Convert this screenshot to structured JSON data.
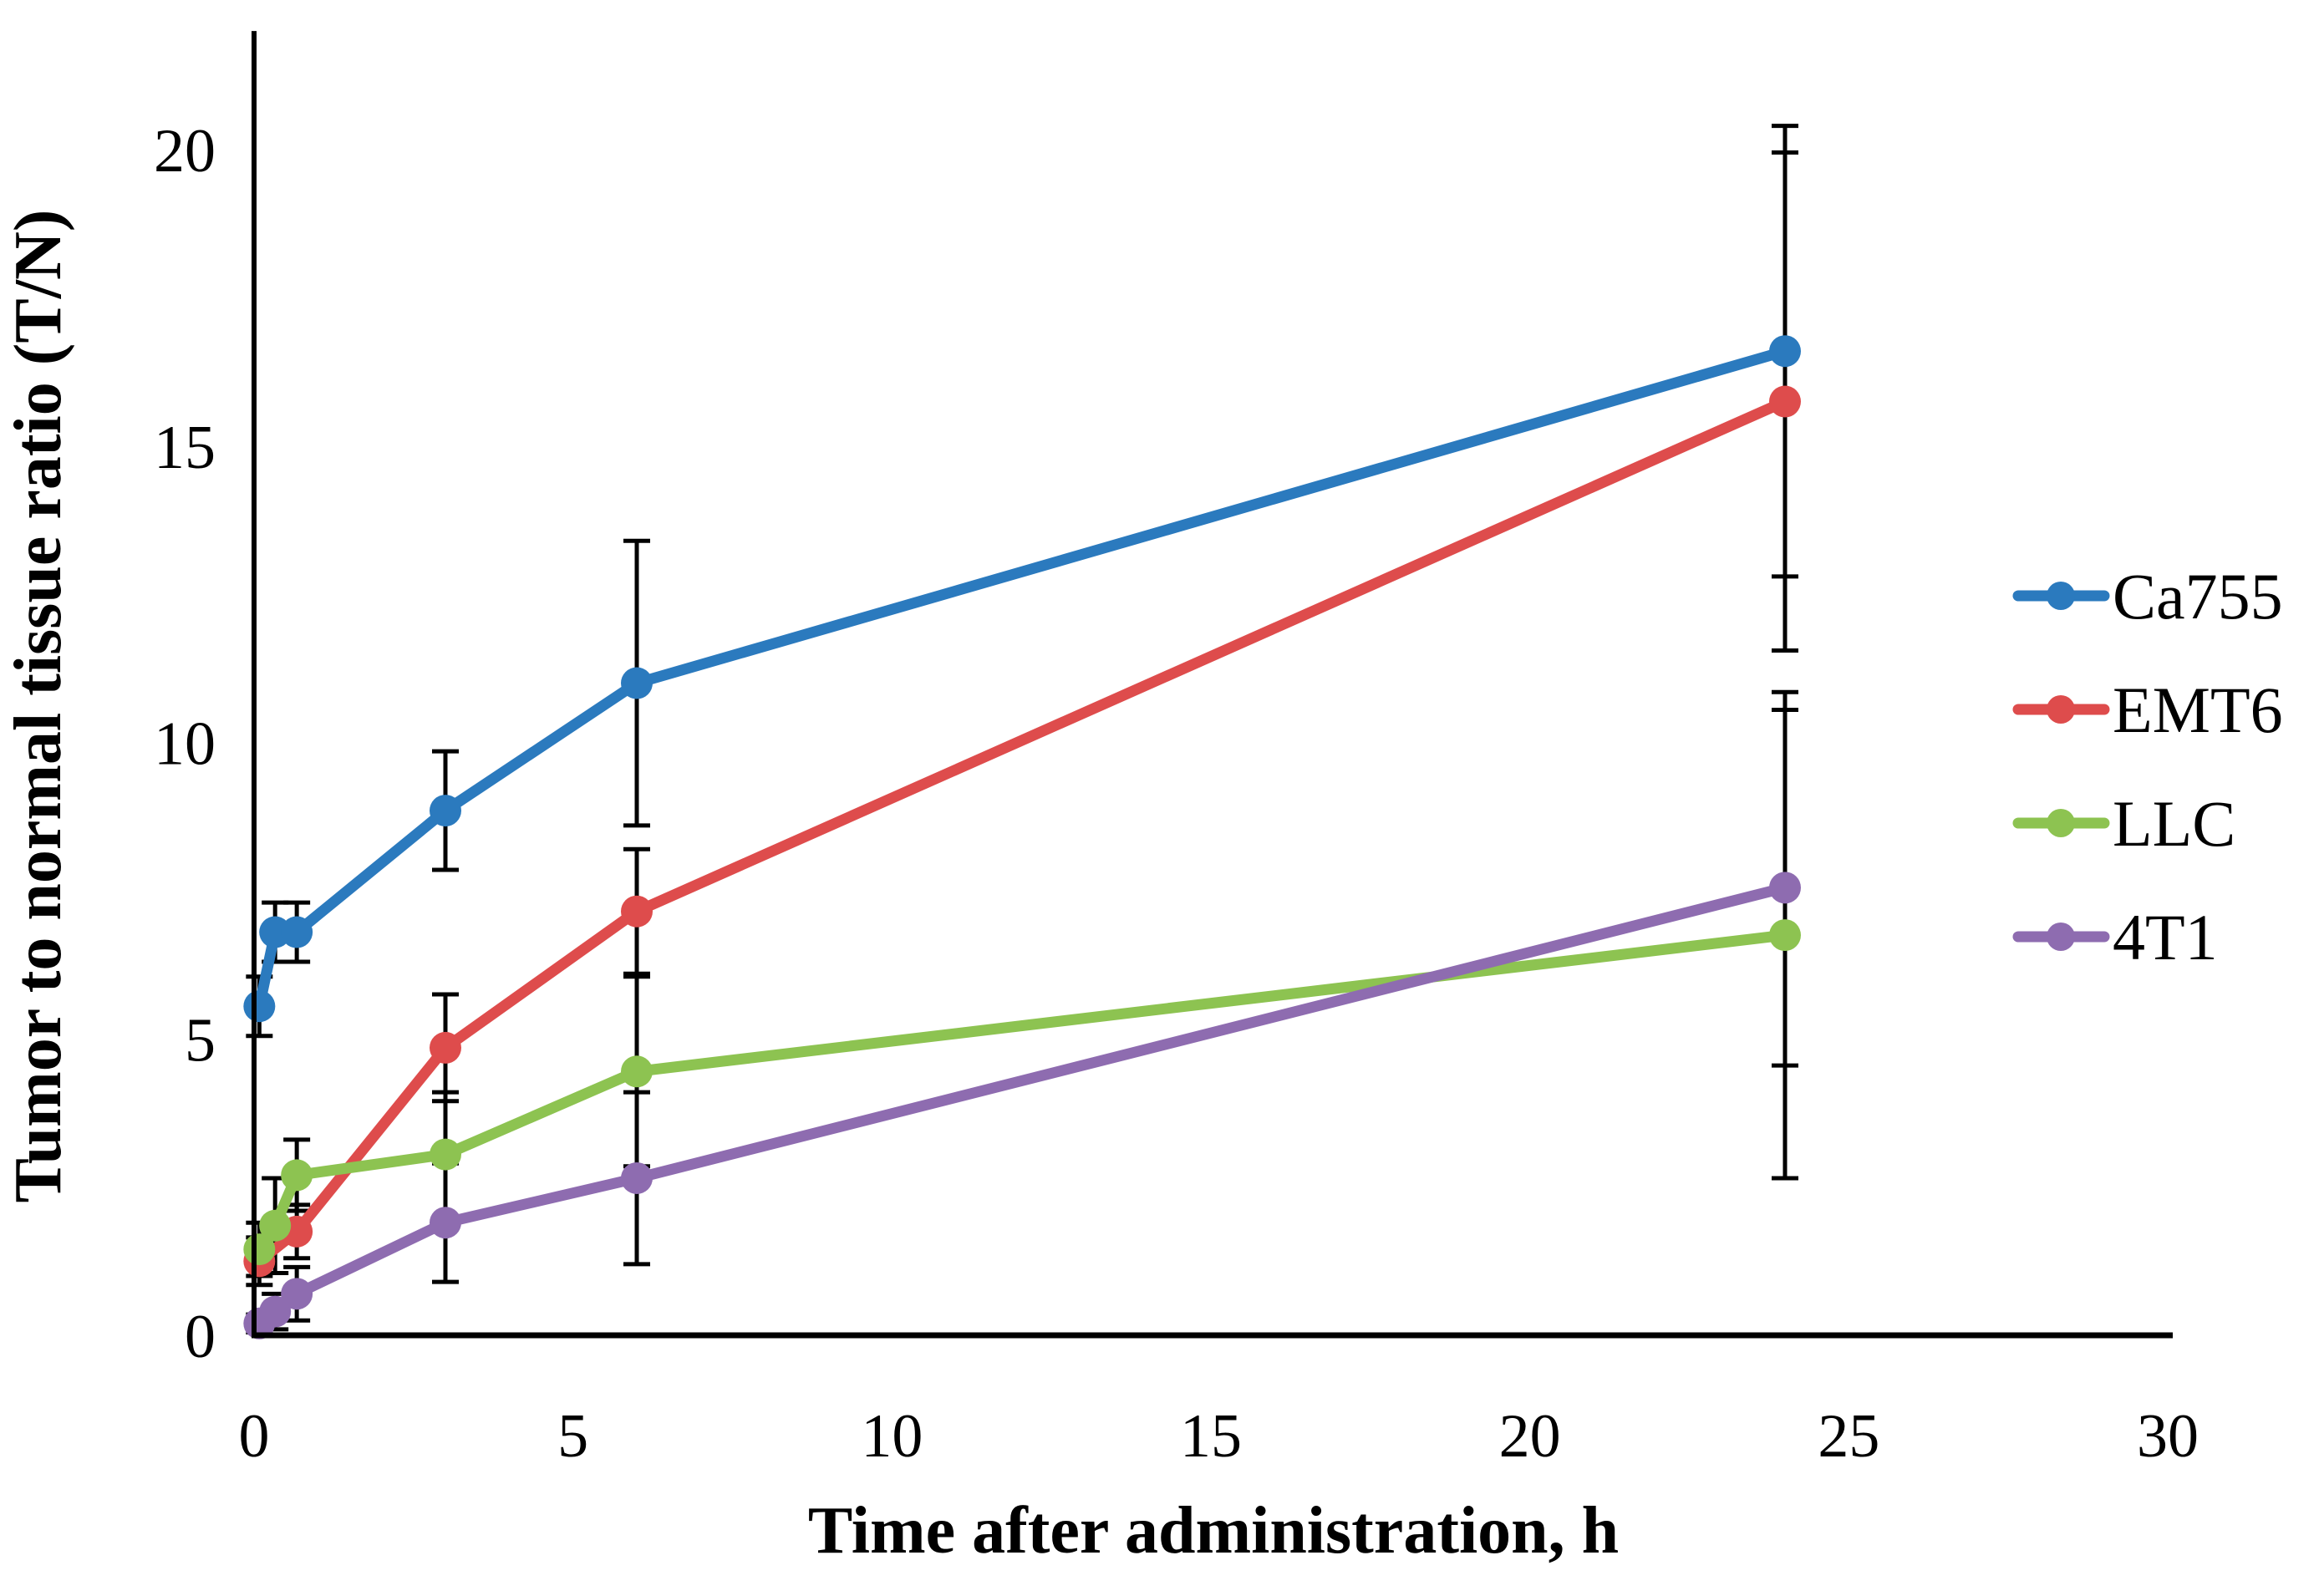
{
  "chart_data": {
    "type": "line",
    "title": "",
    "xlabel": "Time after administration, h",
    "ylabel": "Tumor to normal tissue ratio (T/N)",
    "xlim": [
      0,
      30
    ],
    "ylim": [
      0,
      22
    ],
    "x_ticks": [
      0,
      5,
      10,
      15,
      20,
      25,
      30
    ],
    "y_ticks": [
      0,
      5,
      10,
      15,
      20
    ],
    "grid": false,
    "error_bars": true,
    "legend_position": "right-middle",
    "axis_color": "#000000",
    "error_bar_color": "#000000",
    "series": [
      {
        "name": "Ca755",
        "color": "#2B7ABE",
        "x": [
          0.083,
          0.33,
          0.67,
          3,
          6,
          24
        ],
        "y": [
          5.55,
          6.8,
          6.8,
          8.85,
          11.0,
          16.6
        ],
        "err": [
          0.5,
          0.5,
          0.5,
          1.0,
          2.4,
          3.8
        ]
      },
      {
        "name": "EMT6",
        "color": "#DE4C4C",
        "x": [
          0.083,
          0.67,
          3,
          6,
          24
        ],
        "y": [
          1.25,
          1.75,
          4.85,
          7.15,
          15.75
        ],
        "err": [
          0.4,
          0.45,
          0.9,
          1.05,
          4.2
        ]
      },
      {
        "name": "LLC",
        "color": "#8DC351",
        "x": [
          0.083,
          0.33,
          0.67,
          3,
          6,
          24
        ],
        "y": [
          1.45,
          1.85,
          2.7,
          3.05,
          4.45,
          6.75
        ],
        "err": [
          0.45,
          0.8,
          0.6,
          1.05,
          1.6,
          4.1
        ]
      },
      {
        "name": "4T1",
        "color": "#8E6CB0",
        "x": [
          0.083,
          0.33,
          0.67,
          3,
          6,
          24
        ],
        "y": [
          0.2,
          0.4,
          0.7,
          1.9,
          2.65,
          7.55
        ],
        "err": [
          0.15,
          0.3,
          0.45,
          1.0,
          1.45,
          3.0
        ]
      }
    ]
  }
}
